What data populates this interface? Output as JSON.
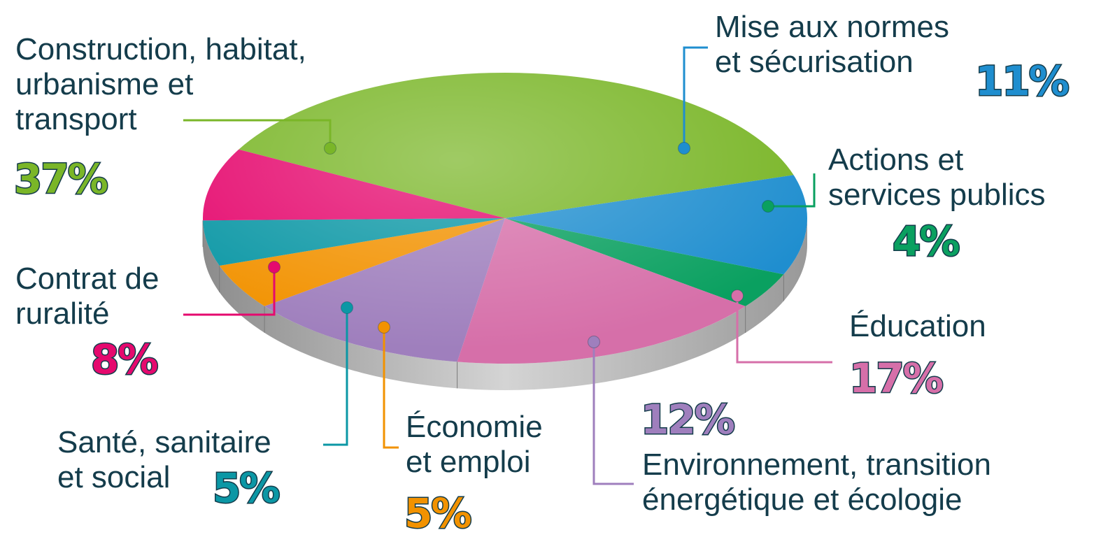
{
  "chart_data": {
    "type": "pie",
    "title": "",
    "label_color": "#143c4b",
    "slices": [
      {
        "key": "construction",
        "label_lines": [
          "Construction, habitat,",
          "urbanisme et",
          "transport"
        ],
        "percent_label": "37%",
        "value": 37,
        "color": "#7ab628"
      },
      {
        "key": "normes",
        "label_lines": [
          "Mise aux normes",
          "et sécurisation"
        ],
        "percent_label": "11%",
        "value": 11,
        "color": "#1f8ecf"
      },
      {
        "key": "actions",
        "label_lines": [
          "Actions et",
          "services publics"
        ],
        "percent_label": "4%",
        "value": 4,
        "color": "#0aa060"
      },
      {
        "key": "education",
        "label_lines": [
          "Éducation"
        ],
        "percent_label": "17%",
        "value": 17,
        "color": "#d66fa9"
      },
      {
        "key": "environnement",
        "label_lines": [
          "Environnement, transition",
          "énergétique et écologie"
        ],
        "percent_label": "12%",
        "value": 12,
        "color": "#9f7fbd"
      },
      {
        "key": "economie",
        "label_lines": [
          "Économie",
          "et emploi"
        ],
        "percent_label": "5%",
        "value": 5,
        "color": "#f29200"
      },
      {
        "key": "sante",
        "label_lines": [
          "Santé, sanitaire",
          "et social"
        ],
        "percent_label": "5%",
        "value": 5,
        "color": "#0b97a5"
      },
      {
        "key": "ruralite",
        "label_lines": [
          "Contrat de",
          "ruralité"
        ],
        "percent_label": "8%",
        "value": 8,
        "color": "#e5096e"
      }
    ]
  }
}
